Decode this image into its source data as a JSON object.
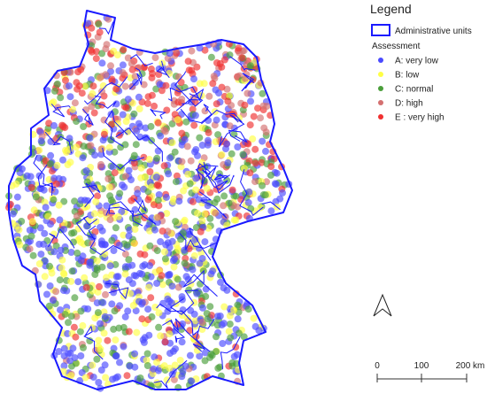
{
  "legend": {
    "title": "Legend",
    "boundary_label": "Administrative units",
    "boundary_color": "#1a1aff",
    "subtitle": "Assessment",
    "classes": [
      {
        "label": "A: very low",
        "color": "#4a4aff"
      },
      {
        "label": "B: low",
        "color": "#ffff44"
      },
      {
        "label": "C: normal",
        "color": "#4a9e3a"
      },
      {
        "label": "D: high",
        "color": "#d47070"
      },
      {
        "label": "E : very high",
        "color": "#f03030"
      }
    ]
  },
  "scale_bar": {
    "labels": [
      "0",
      "100",
      "200 km"
    ]
  }
}
